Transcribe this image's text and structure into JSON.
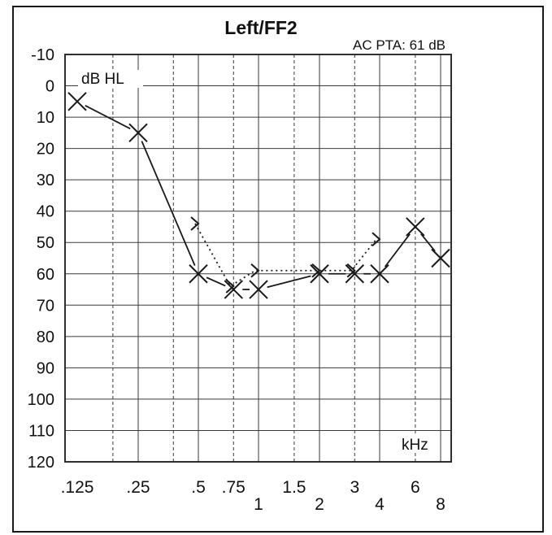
{
  "chart_data": {
    "type": "line",
    "title": "Left/FF2",
    "subtitle": "AC PTA: 61 dB",
    "y_unit_label": "dB HL",
    "x_unit_label": "kHz",
    "ylim": [
      -10,
      120
    ],
    "y_inverted": true,
    "x_scale": "log",
    "grid": true,
    "y_ticks": [
      "-10",
      "0",
      "10",
      "20",
      "30",
      "40",
      "50",
      "60",
      "70",
      "80",
      "90",
      "100",
      "110",
      "120"
    ],
    "x_ticks_upper": [
      ".125",
      ".25",
      ".5",
      ".75",
      "1.5",
      "3",
      "6"
    ],
    "x_ticks_lower": [
      "1",
      "2",
      "4",
      "8"
    ],
    "series": [
      {
        "symbol": "X",
        "x": [
          0.125,
          0.25,
          0.5,
          0.75,
          1,
          2,
          3,
          4,
          6,
          8
        ],
        "values": [
          5,
          15,
          60,
          65,
          65,
          60,
          60,
          60,
          45,
          55
        ]
      },
      {
        "symbol": ">",
        "line": "dotted",
        "x": [
          0.5,
          0.75,
          1,
          2,
          3,
          4
        ],
        "values": [
          45,
          65,
          60,
          60,
          60,
          50
        ]
      }
    ]
  }
}
